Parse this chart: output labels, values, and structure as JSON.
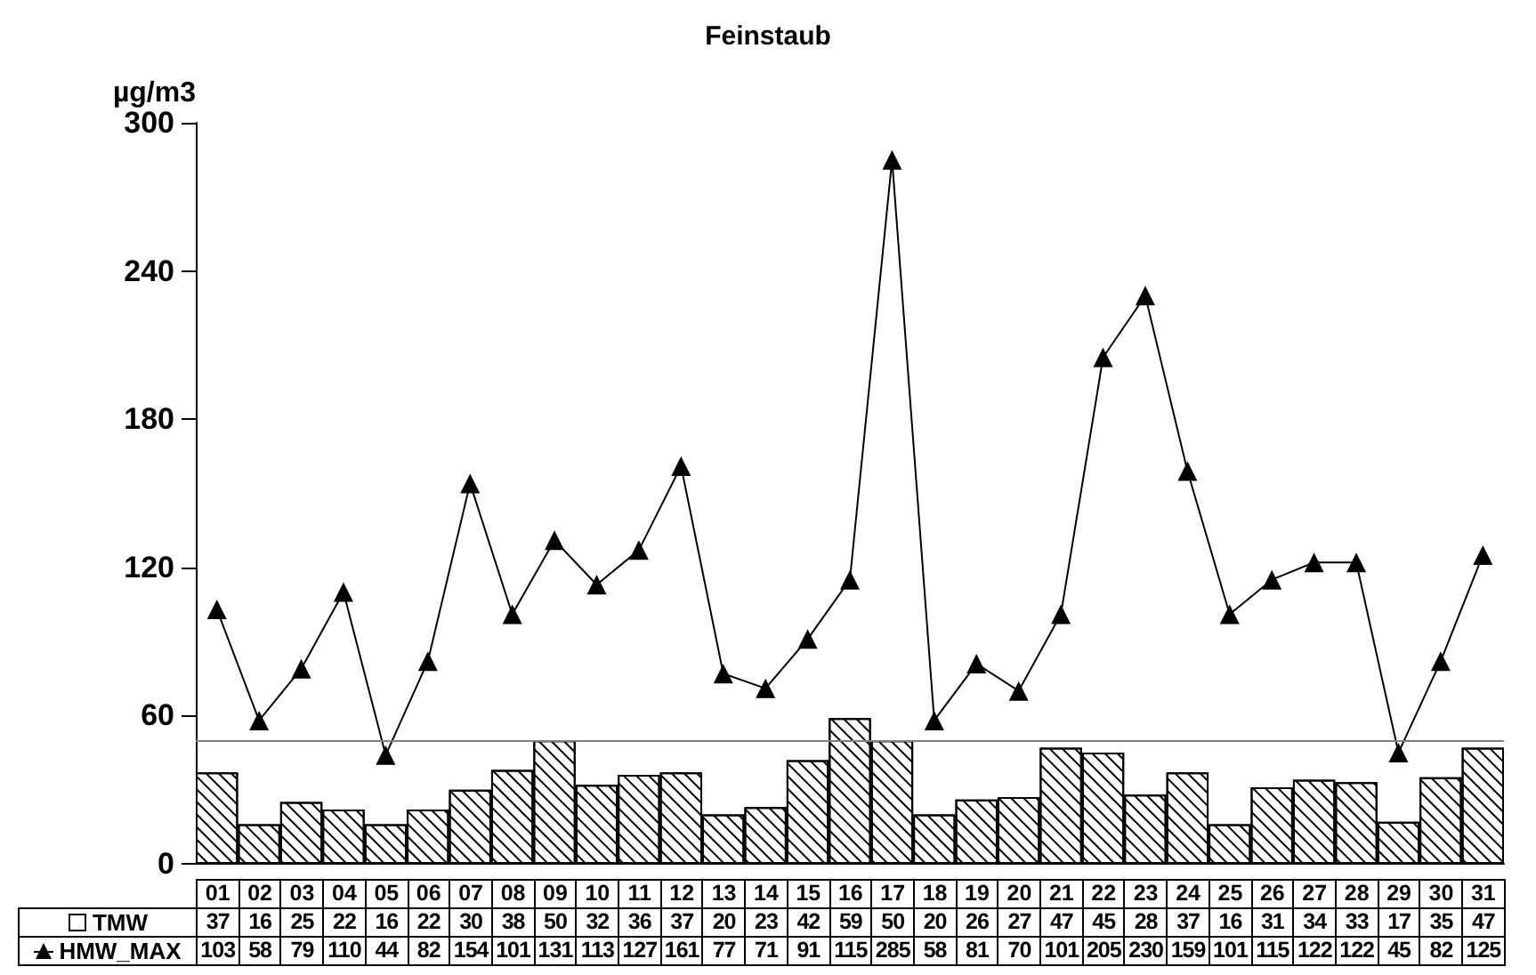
{
  "chart_data": {
    "type": "bar",
    "title": "Feinstaub",
    "ylabel": "µg/m3",
    "categories": [
      "01",
      "02",
      "03",
      "04",
      "05",
      "06",
      "07",
      "08",
      "09",
      "10",
      "11",
      "12",
      "13",
      "14",
      "15",
      "16",
      "17",
      "18",
      "19",
      "20",
      "21",
      "22",
      "23",
      "24",
      "25",
      "26",
      "27",
      "28",
      "29",
      "30",
      "31"
    ],
    "series": [
      {
        "name": "TMW",
        "color": "#ffffff",
        "values": [
          37,
          16,
          25,
          22,
          16,
          22,
          30,
          38,
          50,
          32,
          36,
          37,
          20,
          23,
          42,
          59,
          50,
          20,
          26,
          27,
          47,
          45,
          28,
          37,
          16,
          31,
          34,
          33,
          17,
          35,
          47
        ]
      },
      {
        "name": "HMW_MAX",
        "type": "line",
        "color": "#000000",
        "marker": "triangle",
        "values": [
          103,
          58,
          79,
          110,
          44,
          82,
          154,
          101,
          131,
          113,
          127,
          161,
          77,
          71,
          91,
          115,
          285,
          58,
          81,
          70,
          101,
          205,
          230,
          159,
          101,
          115,
          122,
          122,
          45,
          82,
          125
        ]
      }
    ],
    "ylim": [
      0,
      300
    ],
    "yticks": [
      0,
      60,
      120,
      180,
      240,
      300
    ],
    "ref_lines": [
      {
        "axis": "y",
        "value": 50,
        "color": "#808080"
      }
    ],
    "data_labels": true,
    "grid": false,
    "legend": "bottom left"
  }
}
